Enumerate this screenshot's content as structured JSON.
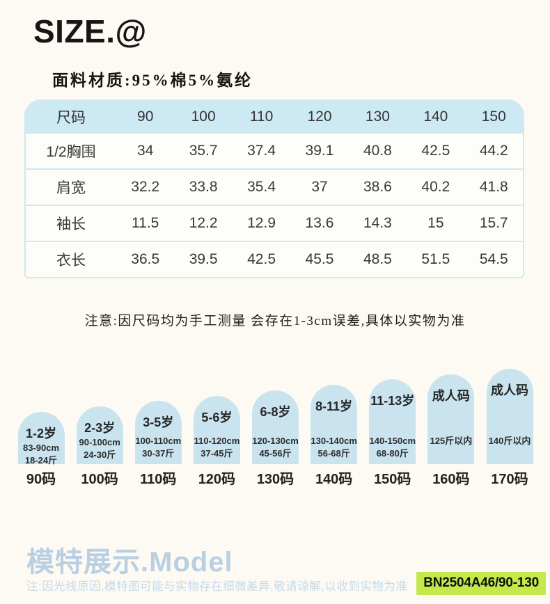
{
  "page": {
    "title": "SIZE.@",
    "fabric": "面料材质:95%棉5%氨纶",
    "note": "注意:因尺码均为手工测量 会存在1-3cm误差,具体以实物为准"
  },
  "size_table": {
    "columns": [
      "尺码",
      "90",
      "100",
      "110",
      "120",
      "130",
      "140",
      "150"
    ],
    "rows": [
      {
        "label": "1/2胸围",
        "values": [
          "34",
          "35.7",
          "37.4",
          "39.1",
          "40.8",
          "42.5",
          "44.2"
        ]
      },
      {
        "label": "肩宽",
        "values": [
          "32.2",
          "33.8",
          "35.4",
          "37",
          "38.6",
          "40.2",
          "41.8"
        ]
      },
      {
        "label": "袖长",
        "values": [
          "11.5",
          "12.2",
          "12.9",
          "13.6",
          "14.3",
          "15",
          "15.7"
        ]
      },
      {
        "label": "衣长",
        "values": [
          "36.5",
          "39.5",
          "42.5",
          "45.5",
          "48.5",
          "51.5",
          "54.5"
        ]
      }
    ]
  },
  "size_guide": {
    "items": [
      {
        "age": "1-2岁",
        "specs": [
          "83-90cm",
          "18-24斤"
        ],
        "code": "90码"
      },
      {
        "age": "2-3岁",
        "specs": [
          "90-100cm",
          "24-30斤"
        ],
        "code": "100码"
      },
      {
        "age": "3-5岁",
        "specs": [
          "100-110cm",
          "30-37斤"
        ],
        "code": "110码"
      },
      {
        "age": "5-6岁",
        "specs": [
          "110-120cm",
          "37-45斤"
        ],
        "code": "120码"
      },
      {
        "age": "6-8岁",
        "specs": [
          "120-130cm",
          "45-56斤"
        ],
        "code": "130码"
      },
      {
        "age": "8-11岁",
        "specs": [
          "130-140cm",
          "56-68斤"
        ],
        "code": "140码"
      },
      {
        "age": "11-13岁",
        "specs": [
          "140-150cm",
          "68-80斤"
        ],
        "code": "150码"
      },
      {
        "age": "成人码",
        "specs": [
          "125斤以内"
        ],
        "code": "160码"
      },
      {
        "age": "成人码",
        "specs": [
          "140斤以内"
        ],
        "code": "170码"
      }
    ]
  },
  "model_section": {
    "heading": "模特展示.Model",
    "note": "注:因光线原因,模特图可能与实物存在细微差异,敬请谅解,以收到实物为准",
    "sku_badge": "BN2504A46/90-130"
  },
  "colors": {
    "background": "#fcfaf2",
    "table_header_bg": "#cde9f4",
    "table_row_bg": "#fdfdfa",
    "table_border": "#cfe8f2",
    "arch_bg": "#c9e4ef",
    "accent_text": "#b9cfe2",
    "badge_bg": "#c5e94a",
    "text_dark": "#2e2e2e"
  }
}
